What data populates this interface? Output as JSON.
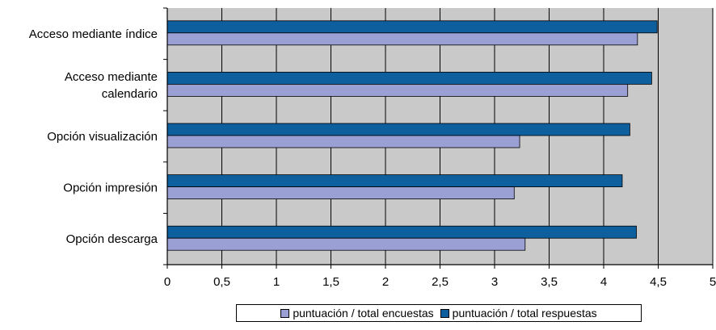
{
  "chart_data": {
    "type": "bar",
    "orientation": "horizontal",
    "title": "",
    "xlabel": "",
    "ylabel": "",
    "xlim": [
      0,
      5
    ],
    "x_ticks": [
      "0",
      "0,5",
      "1",
      "1,5",
      "2",
      "2,5",
      "3",
      "3,5",
      "4",
      "4,5",
      "5"
    ],
    "grid": true,
    "legend_position": "bottom",
    "categories": [
      "Acceso mediante índice",
      "Acceso mediante calendario",
      "Opción visualización",
      "Opción impresión",
      "Opción descarga"
    ],
    "category_label_lines": [
      [
        "Acceso mediante índice"
      ],
      [
        "Acceso mediante",
        "calendario"
      ],
      [
        "Opción visualización"
      ],
      [
        "Opción impresión"
      ],
      [
        "Opción descarga"
      ]
    ],
    "series": [
      {
        "name": "puntuación / total respuestas",
        "color": "#0d5f9e",
        "values": [
          4.49,
          4.44,
          4.24,
          4.17,
          4.3
        ]
      },
      {
        "name": "puntuación / total encuestas",
        "color": "#9a9fd4",
        "values": [
          4.31,
          4.22,
          3.23,
          3.18,
          3.28
        ]
      }
    ],
    "legend_order": [
      "puntuación / total encuestas",
      "puntuación / total respuestas"
    ],
    "colors": {
      "plot_background": "#c9c9c9",
      "grid": "#000000"
    }
  }
}
